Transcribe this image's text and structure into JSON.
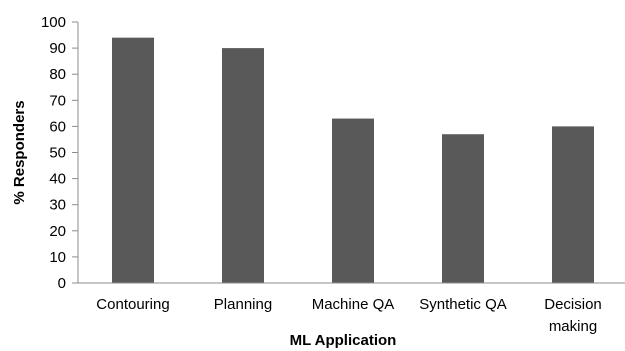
{
  "chart_data": {
    "type": "bar",
    "categories": [
      "Contouring",
      "Planning",
      "Machine QA",
      "Synthetic QA",
      "Decision making"
    ],
    "category_label_lines": [
      [
        "Contouring"
      ],
      [
        "Planning"
      ],
      [
        "Machine QA"
      ],
      [
        "Synthetic QA"
      ],
      [
        "Decision",
        "making"
      ]
    ],
    "values": [
      94,
      90,
      63,
      57,
      60
    ],
    "xlabel": "ML Application",
    "ylabel": "% Responders",
    "ylim": [
      0,
      100
    ],
    "yticks": [
      0,
      10,
      20,
      30,
      40,
      50,
      60,
      70,
      80,
      90,
      100
    ],
    "grid": false,
    "legend": "none",
    "bar_color": "#595959",
    "axis_color": "#8c8c8c"
  }
}
